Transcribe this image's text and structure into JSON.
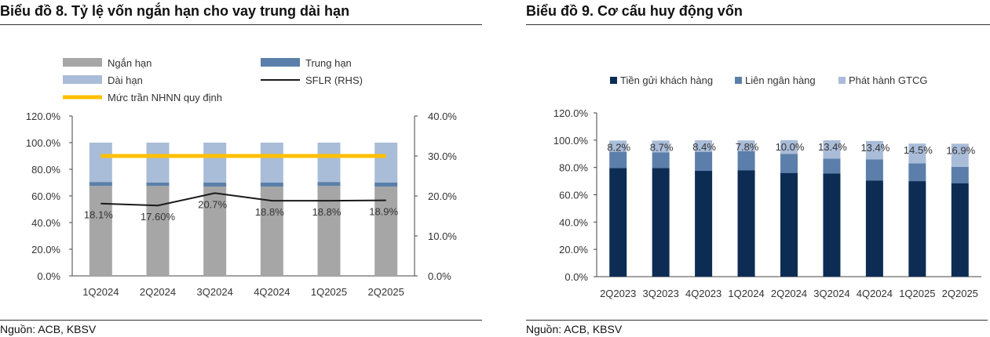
{
  "chart_data": [
    {
      "type": "bar",
      "title": "Biểu đồ 8. Tỷ lệ vốn ngắn hạn cho vay trung dài hạn",
      "source": "Nguồn: ACB, KBSV",
      "categories": [
        "1Q2024",
        "2Q2024",
        "3Q2024",
        "4Q2024",
        "1Q2025",
        "2Q2025"
      ],
      "stacked": true,
      "ylim": [
        0,
        120
      ],
      "y_ticks": [
        "0.0%",
        "20.0%",
        "40.0%",
        "60.0%",
        "80.0%",
        "100.0%",
        "120.0%"
      ],
      "y2lim": [
        0,
        40
      ],
      "y2_ticks": [
        "0.0%",
        "10.0%",
        "20.0%",
        "30.0%",
        "40.0%"
      ],
      "series": [
        {
          "name": "Ngắn hạn",
          "kind": "bar",
          "color": "#a6a6a6",
          "values": [
            67.5,
            67.5,
            67.0,
            67.0,
            67.5,
            67.0
          ]
        },
        {
          "name": "Trung hạn",
          "kind": "bar",
          "color": "#5b7faa",
          "values": [
            3.0,
            2.5,
            3.0,
            3.0,
            3.0,
            3.0
          ]
        },
        {
          "name": "Dài hạn",
          "kind": "bar",
          "color": "#a9bcd8",
          "values": [
            29.5,
            30.0,
            30.0,
            30.0,
            29.5,
            30.0
          ]
        },
        {
          "name": "SFLR (RHS)",
          "kind": "line",
          "axis": "right",
          "color": "#1a1a1a",
          "values": [
            18.1,
            17.6,
            20.7,
            18.8,
            18.8,
            18.9
          ]
        },
        {
          "name": "Mức trần NHNN quy định",
          "kind": "line",
          "axis": "right",
          "color": "#ffc000",
          "values": [
            30,
            30,
            30,
            30,
            30,
            30
          ]
        }
      ],
      "line_labels": [
        "18.1%",
        "17.60%",
        "20.7%",
        "18.8%",
        "18.8%",
        "18.9%"
      ]
    },
    {
      "type": "bar",
      "title": "Biểu đồ 9. Cơ cấu huy động vốn",
      "source": "Nguồn: ACB, KBSV",
      "categories": [
        "2Q2023",
        "3Q2023",
        "4Q2023",
        "1Q2024",
        "2Q2024",
        "3Q2024",
        "4Q2024",
        "1Q2025",
        "2Q2025"
      ],
      "stacked": true,
      "ylim": [
        0,
        120
      ],
      "y_ticks": [
        "0.0%",
        "20.0%",
        "40.0%",
        "60.0%",
        "80.0%",
        "100.0%",
        "120.0%"
      ],
      "series": [
        {
          "name": "Tiền gửi khách hàng",
          "color": "#0d2c54",
          "values": [
            79.5,
            79.5,
            77.5,
            78.0,
            76.0,
            75.5,
            70.5,
            70.0,
            68.5
          ]
        },
        {
          "name": "Liên ngân hàng",
          "color": "#5b7faa",
          "values": [
            12.0,
            11.5,
            14.0,
            14.0,
            14.0,
            11.0,
            15.5,
            13.0,
            12.0
          ]
        },
        {
          "name": "Phát hành GTCG",
          "color": "#a9bcd8",
          "values": [
            8.2,
            8.7,
            8.4,
            7.8,
            10.0,
            13.4,
            13.4,
            14.5,
            16.9
          ]
        }
      ],
      "labels": [
        "8.2%",
        "8.7%",
        "8.4%",
        "7.8%",
        "10.0%",
        "13.4%",
        "13.4%",
        "14.5%",
        "16.9%"
      ]
    }
  ]
}
